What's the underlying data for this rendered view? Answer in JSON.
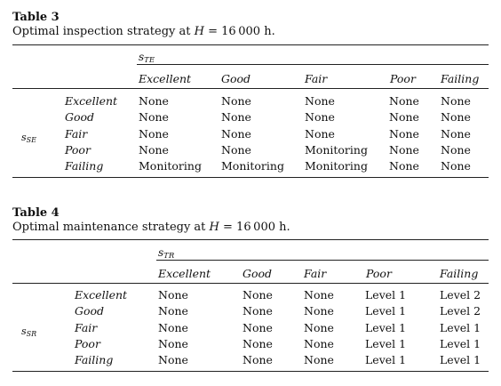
{
  "table3": {
    "label": "Table 3",
    "caption_prefix": "Optimal inspection strategy at ",
    "caption_var": "H",
    "caption_suffix": " = 16 000 h.",
    "col_symbol_base": "s",
    "col_symbol_sub": "TE",
    "row_symbol_base": "s",
    "row_symbol_sub": "SE",
    "columns": [
      "Excellent",
      "Good",
      "Fair",
      "Poor",
      "Failing"
    ],
    "rows": [
      {
        "label": "Excellent",
        "cells": [
          "None",
          "None",
          "None",
          "None",
          "None"
        ]
      },
      {
        "label": "Good",
        "cells": [
          "None",
          "None",
          "None",
          "None",
          "None"
        ]
      },
      {
        "label": "Fair",
        "cells": [
          "None",
          "None",
          "None",
          "None",
          "None"
        ]
      },
      {
        "label": "Poor",
        "cells": [
          "None",
          "None",
          "Monitoring",
          "None",
          "None"
        ]
      },
      {
        "label": "Failing",
        "cells": [
          "Monitoring",
          "Monitoring",
          "Monitoring",
          "None",
          "None"
        ]
      }
    ]
  },
  "table4": {
    "label": "Table 4",
    "caption_prefix": "Optimal maintenance strategy at ",
    "caption_var": "H",
    "caption_suffix": " = 16 000 h.",
    "col_symbol_base": "s",
    "col_symbol_sub": "TR",
    "row_symbol_base": "s",
    "row_symbol_sub": "SR",
    "columns": [
      "Excellent",
      "Good",
      "Fair",
      "Poor",
      "Failing"
    ],
    "rows": [
      {
        "label": "Excellent",
        "cells": [
          "None",
          "None",
          "None",
          "Level 1",
          "Level 2"
        ]
      },
      {
        "label": "Good",
        "cells": [
          "None",
          "None",
          "None",
          "Level 1",
          "Level 2"
        ]
      },
      {
        "label": "Fair",
        "cells": [
          "None",
          "None",
          "None",
          "Level 1",
          "Level 1"
        ]
      },
      {
        "label": "Poor",
        "cells": [
          "None",
          "None",
          "None",
          "Level 1",
          "Level 1"
        ]
      },
      {
        "label": "Failing",
        "cells": [
          "None",
          "None",
          "None",
          "Level 1",
          "Level 1"
        ]
      }
    ]
  }
}
